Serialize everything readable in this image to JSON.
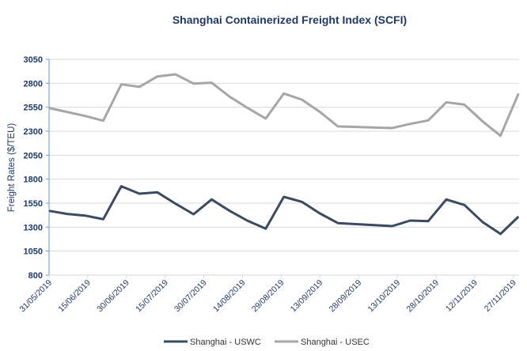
{
  "chart_data": {
    "type": "line",
    "title": "Shanghai Containerized Freight Index (SCFI)",
    "xlabel": "",
    "ylabel": "Freight Rates ($/TEU)",
    "ylim": [
      800,
      3050
    ],
    "yticks": [
      800,
      1050,
      1300,
      1550,
      1800,
      2050,
      2300,
      2550,
      2800,
      3050
    ],
    "xticks": [
      "31/05/2019",
      "15/06/2019",
      "30/06/2019",
      "15/07/2019",
      "30/07/2019",
      "14/08/2019",
      "29/08/2019",
      "13/09/2019",
      "28/09/2019",
      "13/10/2019",
      "28/10/2019",
      "12/11/2019",
      "27/11/2019"
    ],
    "grid": true,
    "legend": "bottom",
    "x": [
      "31/05/2019",
      "07/06/2019",
      "14/06/2019",
      "21/06/2019",
      "28/06/2019",
      "05/07/2019",
      "12/07/2019",
      "19/07/2019",
      "26/07/2019",
      "02/08/2019",
      "09/08/2019",
      "16/08/2019",
      "23/08/2019",
      "30/08/2019",
      "06/09/2019",
      "13/09/2019",
      "20/09/2019",
      "11/10/2019",
      "18/10/2019",
      "25/10/2019",
      "01/11/2019",
      "08/11/2019",
      "15/11/2019",
      "22/11/2019",
      "29/11/2019"
    ],
    "series": [
      {
        "name": "Shanghai - USWC",
        "color": "#3b4a63",
        "values": [
          1470,
          1438,
          1421,
          1383,
          1726,
          1649,
          1663,
          1545,
          1435,
          1589,
          1470,
          1366,
          1284,
          1616,
          1564,
          1443,
          1342,
          1311,
          1369,
          1363,
          1589,
          1531,
          1355,
          1229,
          1410
        ]
      },
      {
        "name": "Shanghai - USEC",
        "color": "#a6a6a6",
        "values": [
          2542,
          2501,
          2459,
          2410,
          2789,
          2762,
          2871,
          2893,
          2797,
          2806,
          2660,
          2542,
          2432,
          2693,
          2630,
          2501,
          2350,
          2333,
          2377,
          2413,
          2602,
          2577,
          2404,
          2253,
          2693
        ]
      }
    ]
  }
}
